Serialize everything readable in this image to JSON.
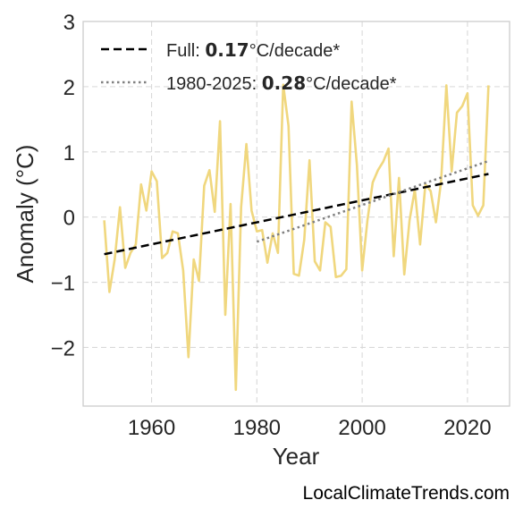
{
  "chart_data": {
    "type": "line",
    "xlabel": "Year",
    "ylabel": "Anomaly (°C)",
    "xlim": [
      1947,
      2028
    ],
    "ylim": [
      -2.9,
      3.0
    ],
    "x_ticks": [
      1960,
      1980,
      2000,
      2020
    ],
    "y_ticks": [
      -2,
      -1,
      0,
      1,
      2,
      3
    ],
    "y_tick_labels": [
      "−2",
      "−1",
      "0",
      "1",
      "2",
      "3"
    ],
    "grid": true,
    "legend_position": "top-left",
    "series": [
      {
        "role": "annual-anomaly",
        "color": "#f0d77e",
        "x": [
          1951,
          1952,
          1953,
          1954,
          1955,
          1956,
          1957,
          1958,
          1959,
          1960,
          1961,
          1962,
          1963,
          1964,
          1965,
          1966,
          1967,
          1968,
          1969,
          1970,
          1971,
          1972,
          1973,
          1974,
          1975,
          1976,
          1977,
          1978,
          1979,
          1980,
          1981,
          1982,
          1983,
          1984,
          1985,
          1986,
          1987,
          1988,
          1989,
          1990,
          1991,
          1992,
          1993,
          1994,
          1995,
          1996,
          1997,
          1998,
          1999,
          2000,
          2001,
          2002,
          2003,
          2004,
          2005,
          2006,
          2007,
          2008,
          2009,
          2010,
          2011,
          2012,
          2013,
          2014,
          2015,
          2016,
          2017,
          2018,
          2019,
          2020,
          2021,
          2022,
          2023,
          2024
        ],
        "y": [
          -0.05,
          -1.15,
          -0.65,
          0.15,
          -0.78,
          -0.55,
          -0.42,
          0.5,
          0.1,
          0.7,
          0.55,
          -0.63,
          -0.55,
          -0.22,
          -0.25,
          -0.82,
          -2.15,
          -0.65,
          -0.98,
          0.48,
          0.72,
          0.08,
          1.47,
          -1.5,
          0.2,
          -2.65,
          0.15,
          1.12,
          0.1,
          -0.22,
          -0.2,
          -0.7,
          -0.25,
          -0.55,
          2.03,
          1.4,
          -0.87,
          -0.9,
          -0.35,
          0.87,
          -0.68,
          -0.82,
          -0.08,
          -0.15,
          -0.92,
          -0.9,
          -0.8,
          1.77,
          0.8,
          -0.82,
          -0.05,
          0.53,
          0.72,
          0.85,
          1.05,
          -0.6,
          0.6,
          -0.88,
          -0.05,
          0.42,
          -0.42,
          0.5,
          0.4,
          -0.08,
          0.55,
          2.02,
          0.7,
          1.6,
          1.7,
          1.9,
          0.18,
          0.02,
          0.18,
          2.02
        ]
      },
      {
        "role": "full-trend",
        "style": "dashed",
        "color": "#000000",
        "x": [
          1951,
          2024
        ],
        "y": [
          -0.57,
          0.66
        ]
      },
      {
        "role": "recent-trend",
        "style": "dotted",
        "color": "#808080",
        "x": [
          1980,
          2024
        ],
        "y": [
          -0.38,
          0.86
        ]
      }
    ],
    "legend": [
      {
        "prefix": "Full: ",
        "value": "0.17",
        "suffix": "°C/decade*",
        "style": "dashed",
        "color": "#000000"
      },
      {
        "prefix": "1980-2025: ",
        "value": "0.28",
        "suffix": "°C/decade*",
        "style": "dotted",
        "color": "#808080"
      }
    ]
  },
  "credit": "LocalClimateTrends.com"
}
